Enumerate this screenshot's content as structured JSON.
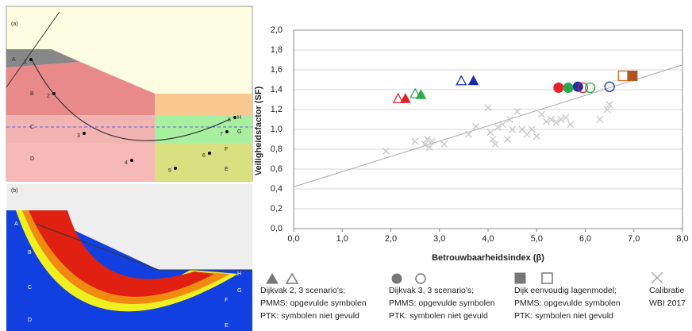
{
  "figure": {
    "panel_a": {
      "label": "(a)",
      "layers": [
        "A",
        "B",
        "C",
        "D",
        "E",
        "F",
        "G",
        "H"
      ],
      "points": [
        "1",
        "2",
        "3",
        "4",
        "5",
        "6",
        "7",
        "8"
      ]
    },
    "panel_b": {
      "label": "(b)",
      "layers": [
        "A",
        "B",
        "C",
        "D",
        "E",
        "F",
        "G",
        "H"
      ]
    }
  },
  "chart_data": {
    "type": "scatter",
    "x_label": "Betrouwbaarheidsindex (β)",
    "y_label": "Veiligheidsfactor (SF)",
    "xlim": [
      0,
      8
    ],
    "ylim": [
      0,
      2
    ],
    "xticks": [
      {
        "value": 0,
        "label": "0,0"
      },
      {
        "value": 1,
        "label": "1,0"
      },
      {
        "value": 2,
        "label": "2,0"
      },
      {
        "value": 3,
        "label": "3,0"
      },
      {
        "value": 4,
        "label": "4,0"
      },
      {
        "value": 5,
        "label": "5,0"
      },
      {
        "value": 6,
        "label": "6,0"
      },
      {
        "value": 7,
        "label": "7,0"
      },
      {
        "value": 8,
        "label": "8,0"
      }
    ],
    "yticks": [
      {
        "value": 0,
        "label": "0,0"
      },
      {
        "value": 0.2,
        "label": "0,2"
      },
      {
        "value": 0.4,
        "label": "0,4"
      },
      {
        "value": 0.6,
        "label": "0,6"
      },
      {
        "value": 0.8,
        "label": "0,8"
      },
      {
        "value": 1,
        "label": "1,0"
      },
      {
        "value": 1.2,
        "label": "1,2"
      },
      {
        "value": 1.4,
        "label": "1,4"
      },
      {
        "value": 1.6,
        "label": "1,6"
      },
      {
        "value": 1.8,
        "label": "1,8"
      },
      {
        "value": 2,
        "label": "2,0"
      }
    ],
    "grid": "y",
    "series": [
      {
        "marker": "triangle",
        "filled": true,
        "colors": [
          "#e8202a",
          "#2aa84a",
          "#1a2ea8"
        ],
        "x": [
          2.3,
          2.62,
          3.7
        ],
        "values": [
          1.31,
          1.35,
          1.49
        ]
      },
      {
        "marker": "triangle",
        "filled": false,
        "colors": [
          "#e8202a",
          "#2aa84a",
          "#1a2ea8"
        ],
        "x": [
          2.15,
          2.5,
          3.45
        ],
        "values": [
          1.31,
          1.36,
          1.49
        ]
      },
      {
        "marker": "circle",
        "filled": true,
        "colors": [
          "#e8202a",
          "#2aa84a",
          "#1a2ea8"
        ],
        "x": [
          5.45,
          5.65,
          5.85
        ],
        "values": [
          1.42,
          1.42,
          1.43
        ]
      },
      {
        "marker": "circle",
        "filled": false,
        "colors": [
          "#e8202a",
          "#2aa84a",
          "#1a2ea8"
        ],
        "x": [
          5.95,
          6.1,
          6.5
        ],
        "values": [
          1.42,
          1.42,
          1.43
        ]
      },
      {
        "marker": "square",
        "filled": false,
        "colors": [
          "#e07020"
        ],
        "x": [
          6.78
        ],
        "values": [
          1.54
        ]
      },
      {
        "marker": "square",
        "filled": true,
        "colors": [
          "#b0561e"
        ],
        "x": [
          6.97
        ],
        "values": [
          1.54
        ]
      },
      {
        "marker": "cross",
        "filled": false,
        "colors": [
          "#c8c8c8"
        ],
        "x": [
          1.9,
          2.5,
          2.7,
          2.75,
          2.8,
          2.85,
          3.1,
          3.6,
          3.75,
          4.0,
          4.05,
          4.1,
          4.15,
          4.2,
          4.3,
          4.4,
          4.45,
          4.5,
          4.6,
          4.7,
          4.8,
          4.9,
          5.0,
          5.1,
          5.2,
          5.3,
          5.4,
          5.5,
          5.6,
          5.7,
          6.3,
          6.45,
          6.5
        ],
        "values": [
          0.78,
          0.88,
          0.85,
          0.9,
          0.82,
          0.88,
          0.85,
          0.95,
          1.03,
          1.22,
          0.97,
          0.9,
          0.85,
          1.02,
          1.05,
          0.9,
          1.1,
          1.0,
          1.18,
          1.0,
          0.95,
          1.0,
          0.93,
          1.15,
          1.08,
          1.1,
          1.07,
          1.1,
          1.12,
          1.05,
          1.1,
          1.2,
          1.25
        ]
      }
    ],
    "trendline": {
      "color": "#aaaaaa",
      "x": [
        0,
        8
      ],
      "y": [
        0.42,
        1.65
      ]
    },
    "legend": [
      {
        "lines": [
          "Dijkvak 2, 3 scenario's;",
          "PMMS: opgevulde symbolen",
          "PTK: symbolen niet gevuld"
        ]
      },
      {
        "lines": [
          "Dijkvak 3, 3 scenario's;",
          "PMMS: opgevulde symbolen",
          "PTK: symbolen niet gevuld"
        ]
      },
      {
        "lines": [
          "Dijk eenvoudig lagenmodel;",
          "PMMS: opgevulde symbolen",
          "PTK: symbolen niet gevuld"
        ]
      },
      {
        "lines": [
          "Calibratie",
          "WBI 2017"
        ]
      }
    ]
  }
}
